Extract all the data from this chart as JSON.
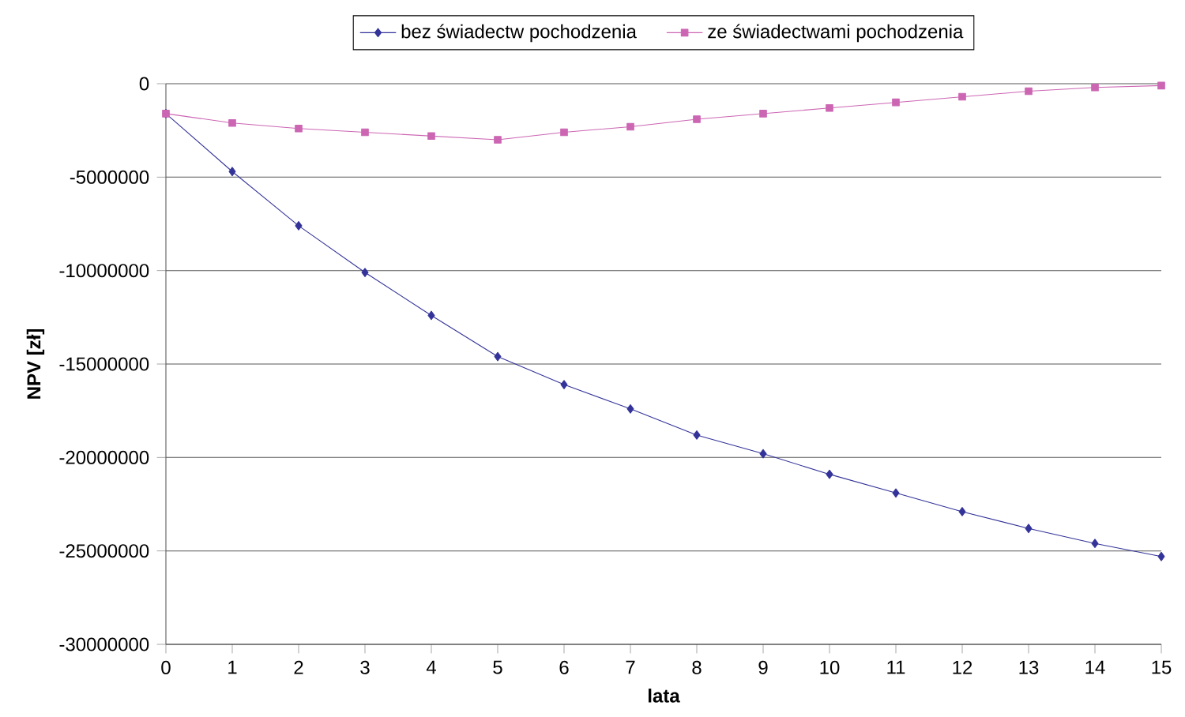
{
  "chart_data": {
    "type": "line",
    "xlabel": "lata",
    "ylabel": "NPV [zł]",
    "x": [
      0,
      1,
      2,
      3,
      4,
      5,
      6,
      7,
      8,
      9,
      10,
      11,
      12,
      13,
      14,
      15
    ],
    "series": [
      {
        "name": "bez świadectw pochodzenia",
        "color": "#333399",
        "marker": "diamond",
        "values": [
          -1600000,
          -4700000,
          -7600000,
          -10100000,
          -12400000,
          -14600000,
          -16100000,
          -17400000,
          -18800000,
          -19800000,
          -20900000,
          -21900000,
          -22900000,
          -23800000,
          -24600000,
          -25300000
        ]
      },
      {
        "name": "ze świadectwami pochodzenia",
        "color": "#cc66b3",
        "marker": "square",
        "values": [
          -1600000,
          -2100000,
          -2400000,
          -2600000,
          -2800000,
          -3000000,
          -2600000,
          -2300000,
          -1900000,
          -1600000,
          -1300000,
          -1000000,
          -700000,
          -400000,
          -200000,
          -100000
        ]
      }
    ],
    "xlim": [
      0,
      15
    ],
    "xticks": [
      0,
      1,
      2,
      3,
      4,
      5,
      6,
      7,
      8,
      9,
      10,
      11,
      12,
      13,
      14,
      15
    ],
    "ylim": [
      -30000000,
      0
    ],
    "yticks": [
      -30000000,
      -25000000,
      -20000000,
      -15000000,
      -10000000,
      -5000000,
      0
    ],
    "grid": "y",
    "legend": "top",
    "line_style": "solid"
  }
}
